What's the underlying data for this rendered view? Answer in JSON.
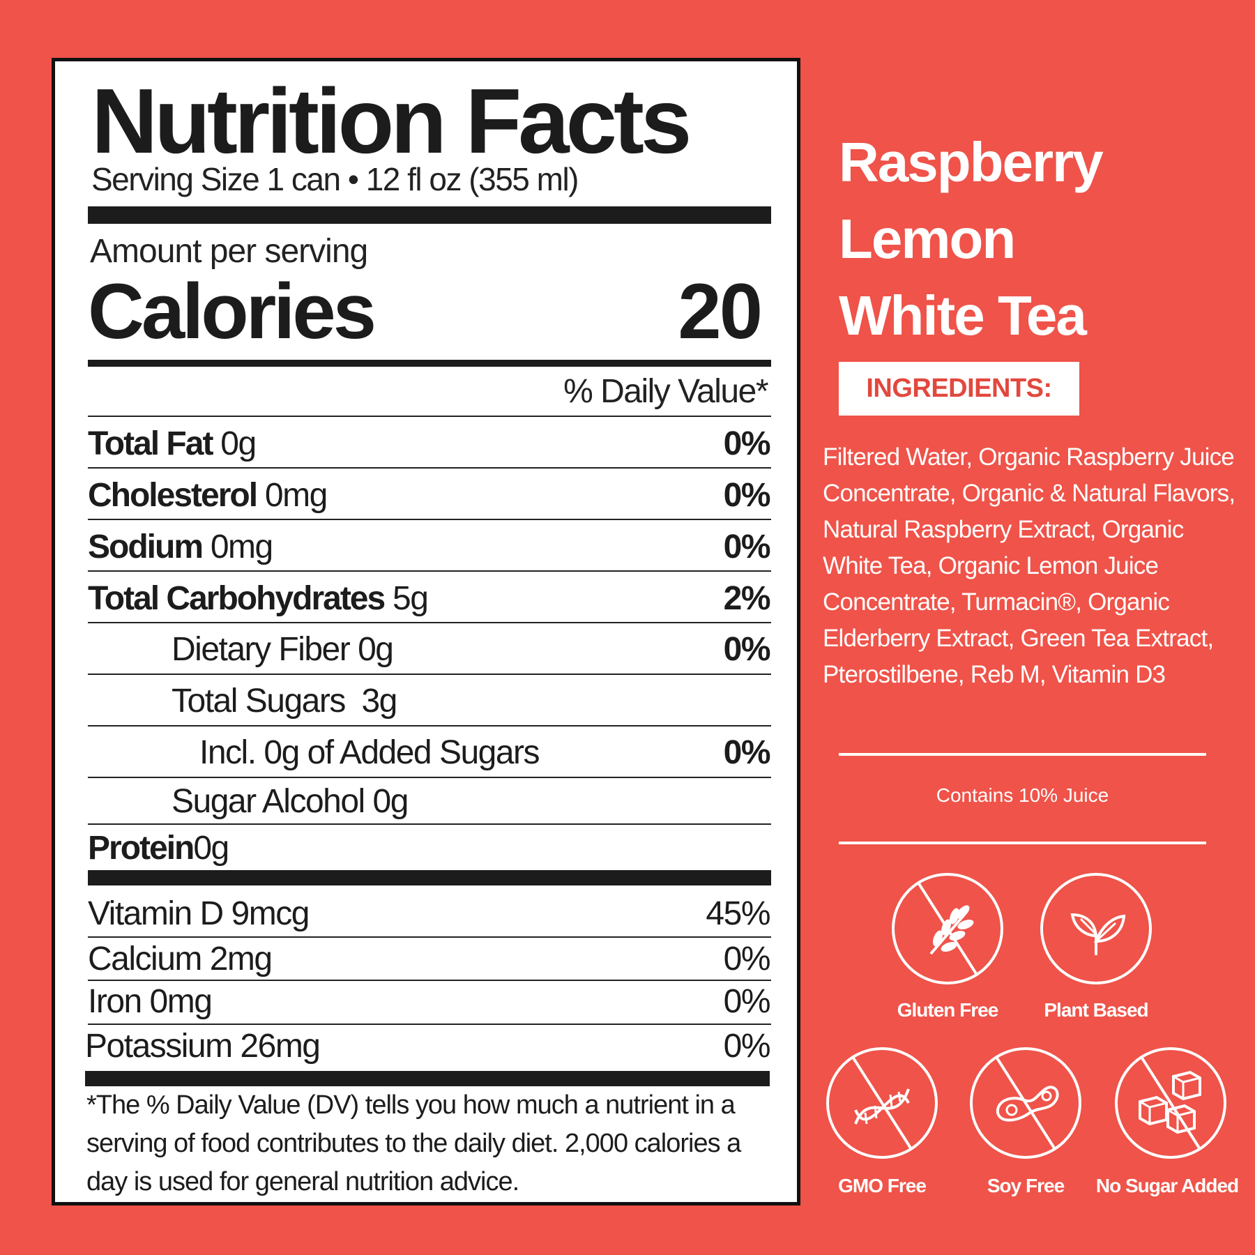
{
  "nutrition": {
    "title": "Nutrition Facts",
    "serving_size": "Serving Size 1 can • 12 fl oz (355 ml)",
    "amount_per_serving": "Amount per serving",
    "calories_label": "Calories",
    "calories_value": "20",
    "daily_value_header": "% Daily Value*",
    "rows": [
      {
        "name": "Total Fat",
        "amount": "0g",
        "dv": "0%"
      },
      {
        "name": "Cholesterol",
        "amount": "0mg",
        "dv": "0%"
      },
      {
        "name": "Sodium",
        "amount": "0mg",
        "dv": "0%"
      },
      {
        "name": "Total Carbohydrates",
        "amount": "5g",
        "dv": "2%"
      },
      {
        "name": "Dietary Fiber 0g",
        "dv": "0%"
      },
      {
        "name": "Total Sugars  3g",
        "dv": ""
      },
      {
        "name": "Incl. 0g of Added Sugars",
        "dv": "0%"
      },
      {
        "name": "Sugar Alcohol 0g",
        "dv": ""
      },
      {
        "name": "Protein",
        "amount": "0g",
        "dv": ""
      }
    ],
    "vitamins": [
      {
        "name": "Vitamin D 9mcg",
        "dv": "45%"
      },
      {
        "name": "Calcium 2mg",
        "dv": "0%"
      },
      {
        "name": "Iron 0mg",
        "dv": "0%"
      },
      {
        "name": "Potassium 26mg",
        "dv": "0%"
      }
    ],
    "footnote": "*The % Daily Value (DV) tells you how much a nutrient in a serving of food contributes to the daily diet. 2,000 calories a day is used for general nutrition advice."
  },
  "product": {
    "name_lines": [
      "Raspberry",
      "Lemon",
      "White Tea"
    ],
    "ingredients_label": "INGREDIENTS:",
    "ingredients": "Filtered Water, Organic Raspberry Juice Concentrate, Organic & Natural Flavors, Natural Raspberry Extract, Organic White Tea, Organic Lemon Juice Concentrate, Turmacin®, Organic Elderberry Extract, Green Tea Extract, Pterostilbene, Reb M, Vitamin D3",
    "juice_note": "Contains 10% Juice",
    "badges": [
      {
        "label": "Gluten Free",
        "icon": "wheat-crossed-icon"
      },
      {
        "label": "Plant Based",
        "icon": "leaf-icon"
      },
      {
        "label": "GMO Free",
        "icon": "dna-crossed-icon"
      },
      {
        "label": "Soy Free",
        "icon": "soybean-crossed-icon"
      },
      {
        "label": "No Sugar Added",
        "icon": "sugar-cubes-crossed-icon"
      }
    ]
  },
  "colors": {
    "background": "#ef5349",
    "panel": "#ffffff",
    "ink": "#1c1c1c",
    "accent_text": "#e2483d"
  }
}
